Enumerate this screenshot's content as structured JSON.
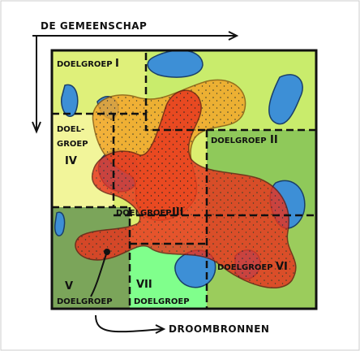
{
  "axes": {
    "horizontal": "DE GEMEENSCHAP",
    "bottom": "DROOMBRONNEN"
  },
  "zones": [
    {
      "label": "DOELGROEP",
      "numeral": "I"
    },
    {
      "label": "DOELGROEP",
      "numeral": "II"
    },
    {
      "label": "DOELGROEP",
      "numeral": "III"
    },
    {
      "label_lines": [
        "DOEL-",
        "GROEP"
      ],
      "numeral": "IV"
    },
    {
      "label": "DOELGROEP",
      "numeral": "V"
    },
    {
      "label": "DOELGROEP",
      "numeral": "VI"
    },
    {
      "label": "DOELGROEP",
      "numeral": "VII"
    }
  ]
}
